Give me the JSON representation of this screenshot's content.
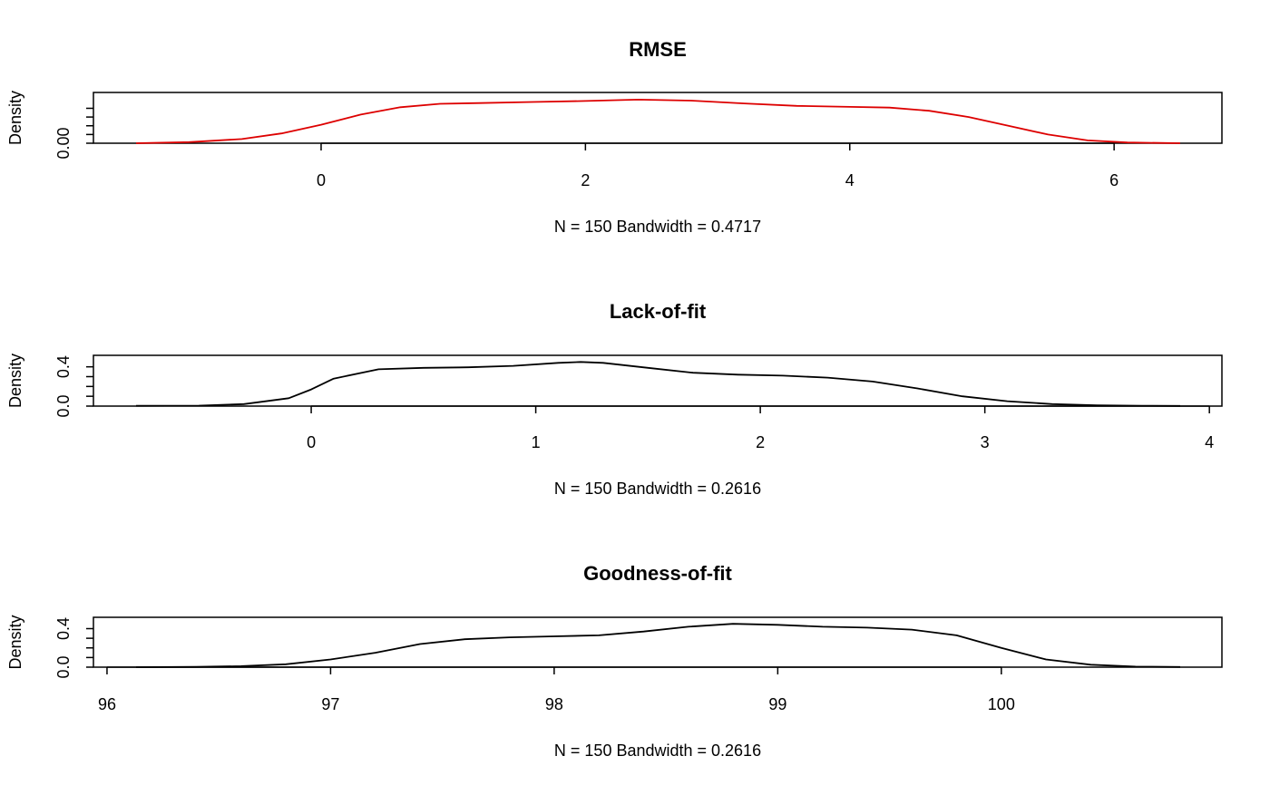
{
  "chart_data": [
    {
      "type": "line",
      "title": "RMSE",
      "xlabel": "N = 150   Bandwidth = 0.4717",
      "ylabel": "Density",
      "color": "#dd0000",
      "xlim": [
        -1.43,
        6.55
      ],
      "ylim": [
        0,
        0.135
      ],
      "xticks": [
        "0",
        "2",
        "4",
        "6"
      ],
      "xtick_values": [
        0,
        2,
        4,
        6
      ],
      "yticks": [
        "0.00"
      ],
      "ytick_values": [
        0,
        0.025,
        0.05,
        0.075,
        0.1
      ],
      "series": [
        {
          "x": [
            -1.4,
            -1.0,
            -0.6,
            -0.3,
            0.0,
            0.3,
            0.6,
            0.9,
            1.2,
            1.6,
            2.0,
            2.4,
            2.8,
            3.2,
            3.6,
            4.0,
            4.3,
            4.6,
            4.9,
            5.2,
            5.5,
            5.8,
            6.1,
            6.5
          ],
          "y": [
            0.0,
            0.003,
            0.012,
            0.028,
            0.053,
            0.082,
            0.103,
            0.113,
            0.115,
            0.118,
            0.121,
            0.125,
            0.122,
            0.114,
            0.107,
            0.104,
            0.102,
            0.093,
            0.075,
            0.05,
            0.025,
            0.008,
            0.002,
            0.0
          ]
        }
      ]
    },
    {
      "type": "line",
      "title": "Lack-of-fit",
      "xlabel": "N = 150   Bandwidth = 0.2616",
      "ylabel": "Density",
      "color": "#000000",
      "xlim": [
        -0.95,
        4.05
      ],
      "ylim": [
        0,
        0.48
      ],
      "xticks": [
        "0",
        "1",
        "2",
        "3",
        "4"
      ],
      "xtick_values": [
        0,
        1,
        2,
        3,
        4
      ],
      "yticks": [
        "0.0",
        "0.4"
      ],
      "ytick_values": [
        0,
        0.1,
        0.2,
        0.3,
        0.4
      ],
      "series": [
        {
          "x": [
            -0.78,
            -0.5,
            -0.3,
            -0.1,
            0.0,
            0.1,
            0.3,
            0.5,
            0.7,
            0.9,
            1.1,
            1.2,
            1.3,
            1.5,
            1.7,
            1.9,
            2.1,
            2.3,
            2.5,
            2.7,
            2.9,
            3.1,
            3.3,
            3.5,
            3.7,
            3.87
          ],
          "y": [
            0.003,
            0.005,
            0.02,
            0.08,
            0.17,
            0.28,
            0.375,
            0.39,
            0.395,
            0.41,
            0.44,
            0.45,
            0.44,
            0.39,
            0.34,
            0.32,
            0.31,
            0.29,
            0.25,
            0.18,
            0.1,
            0.05,
            0.02,
            0.008,
            0.004,
            0.002
          ]
        }
      ]
    },
    {
      "type": "line",
      "title": "Goodness-of-fit",
      "xlabel": "N = 150   Bandwidth = 0.2616",
      "ylabel": "Density",
      "color": "#000000",
      "xlim": [
        95.95,
        100.95
      ],
      "ylim": [
        0,
        0.48
      ],
      "xticks": [
        "96",
        "97",
        "98",
        "99",
        "100"
      ],
      "xtick_values": [
        96,
        97,
        98,
        99,
        100
      ],
      "yticks": [
        "0.0",
        "0.4"
      ],
      "ytick_values": [
        0,
        0.1,
        0.2,
        0.3,
        0.4
      ],
      "series": [
        {
          "x": [
            96.13,
            96.4,
            96.6,
            96.8,
            97.0,
            97.2,
            97.4,
            97.6,
            97.8,
            98.0,
            98.2,
            98.4,
            98.6,
            98.8,
            99.0,
            99.2,
            99.4,
            99.6,
            99.8,
            100.0,
            100.2,
            100.4,
            100.6,
            100.8
          ],
          "y": [
            0.0,
            0.003,
            0.01,
            0.03,
            0.08,
            0.15,
            0.24,
            0.29,
            0.31,
            0.32,
            0.33,
            0.37,
            0.42,
            0.45,
            0.44,
            0.42,
            0.41,
            0.39,
            0.33,
            0.2,
            0.08,
            0.025,
            0.006,
            0.002
          ]
        }
      ]
    }
  ]
}
